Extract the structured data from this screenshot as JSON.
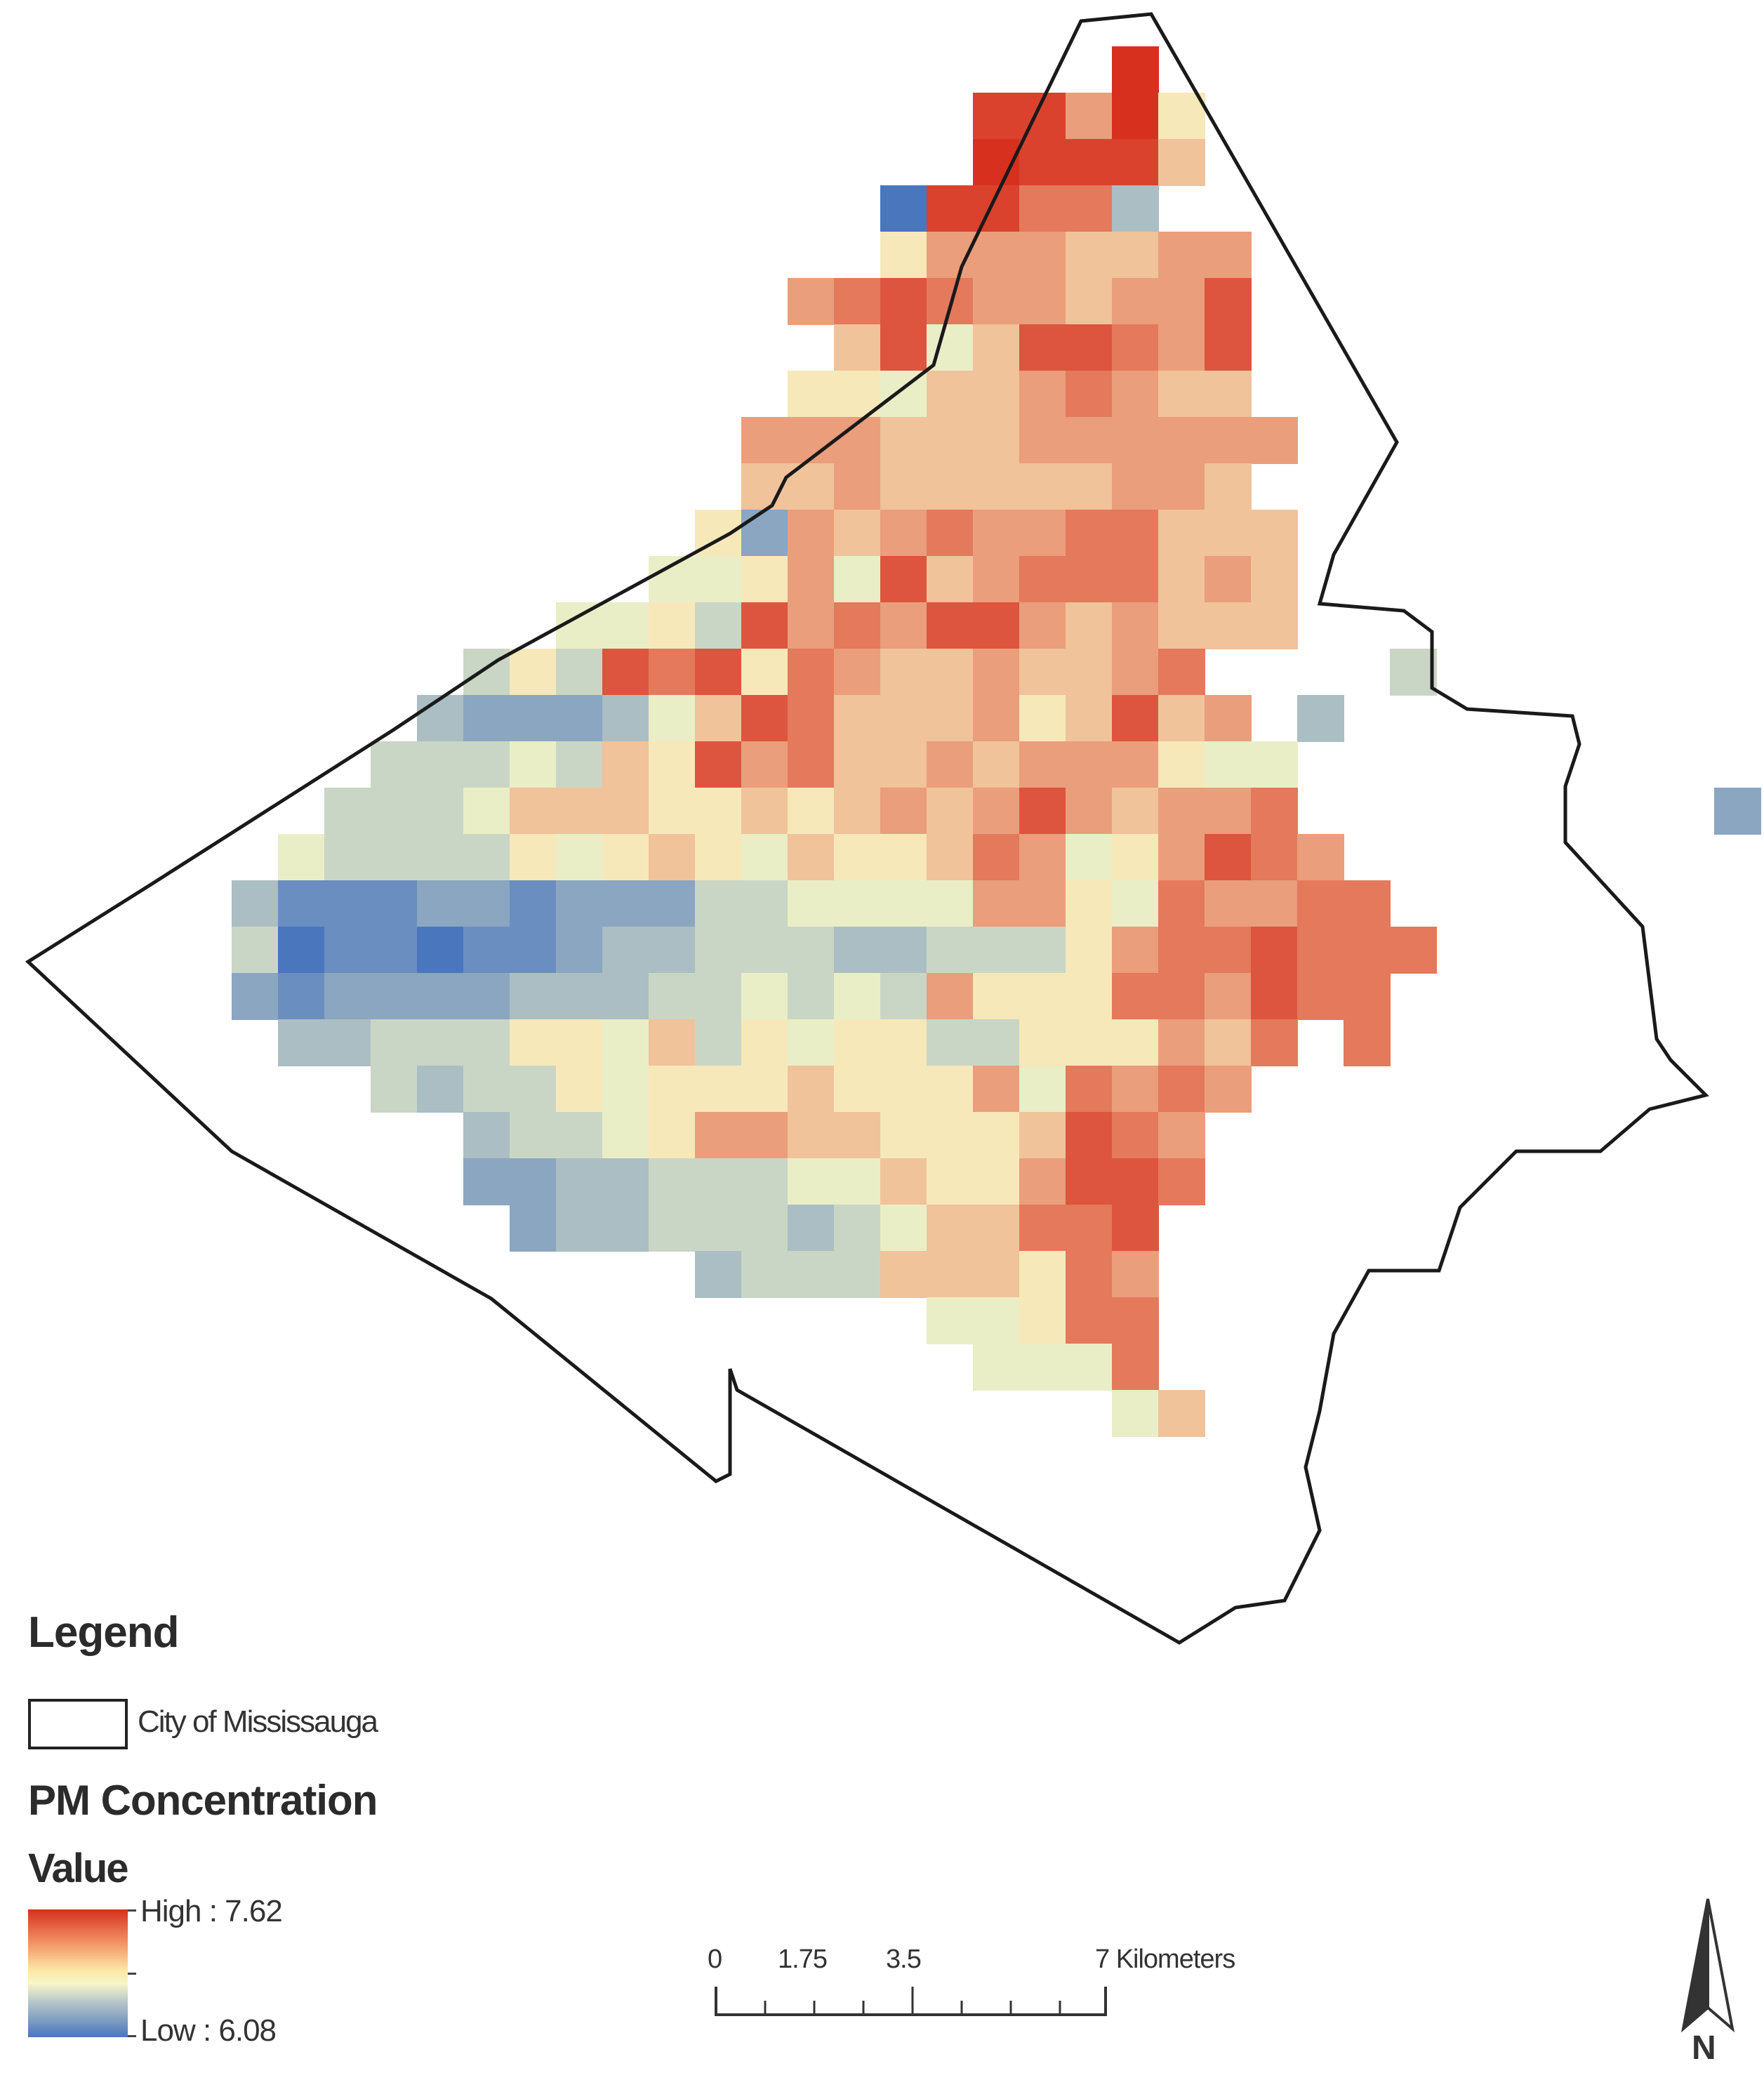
{
  "map": {
    "colors": {
      "high": "#d7301f",
      "mid": "#fafac8",
      "low": "#4a76bd"
    },
    "grid": [
      "......................................",
      "........................X.............",
      ".....................aa8d6............",
      ".....................baaa7............",
      "...................0aa993.............",
      "...................68887788............",
      ".................89A988788A...........",
      "..................7A57AA98A...........",
      ".................6657789877...........",
      "................888777888888..........",
      "................77877777887...........",
      "...............6287898899777..........",
      "..............55685A78999787..........",
      "............5564A898AA878777..........",
      "..........464A9A6987787789....4.......",
      ".........3222357A9777867A78.3.........",
      "........4445476A897787888655..........",
      ".......444577766767878A87889.........2",
      "......54444656765766798568A98.........",
      ".....3111221222445555886598899........",
      ".....4011011233444334446899A999.......",
      ".....2122223334454548666998A99........",
      "......3344466574656644666879.9........",
      "........4344656667666859898...........",
      "..........3445688776667A98............",
      "..........2233444557668AA9............",
      "...........2334443457799A.............",
      "...............3444777698.............",
      "....................55699.............",
      ".....................5559.............",
      "........................57...........",
      "......................................"
    ]
  },
  "legend": {
    "title": "Legend",
    "boundary_label": "City of Mississauga",
    "layer_title": "PM Concentration",
    "value_title": "Value",
    "high_label": "High : 7.62",
    "low_label": "Low : 6.08"
  },
  "scale_bar": {
    "labels": [
      "0",
      "1.75",
      "3.5",
      "7 Kilometers"
    ],
    "unit": "Kilometers"
  },
  "north_arrow": {
    "label": "N",
    "icon": "north-arrow-icon"
  }
}
